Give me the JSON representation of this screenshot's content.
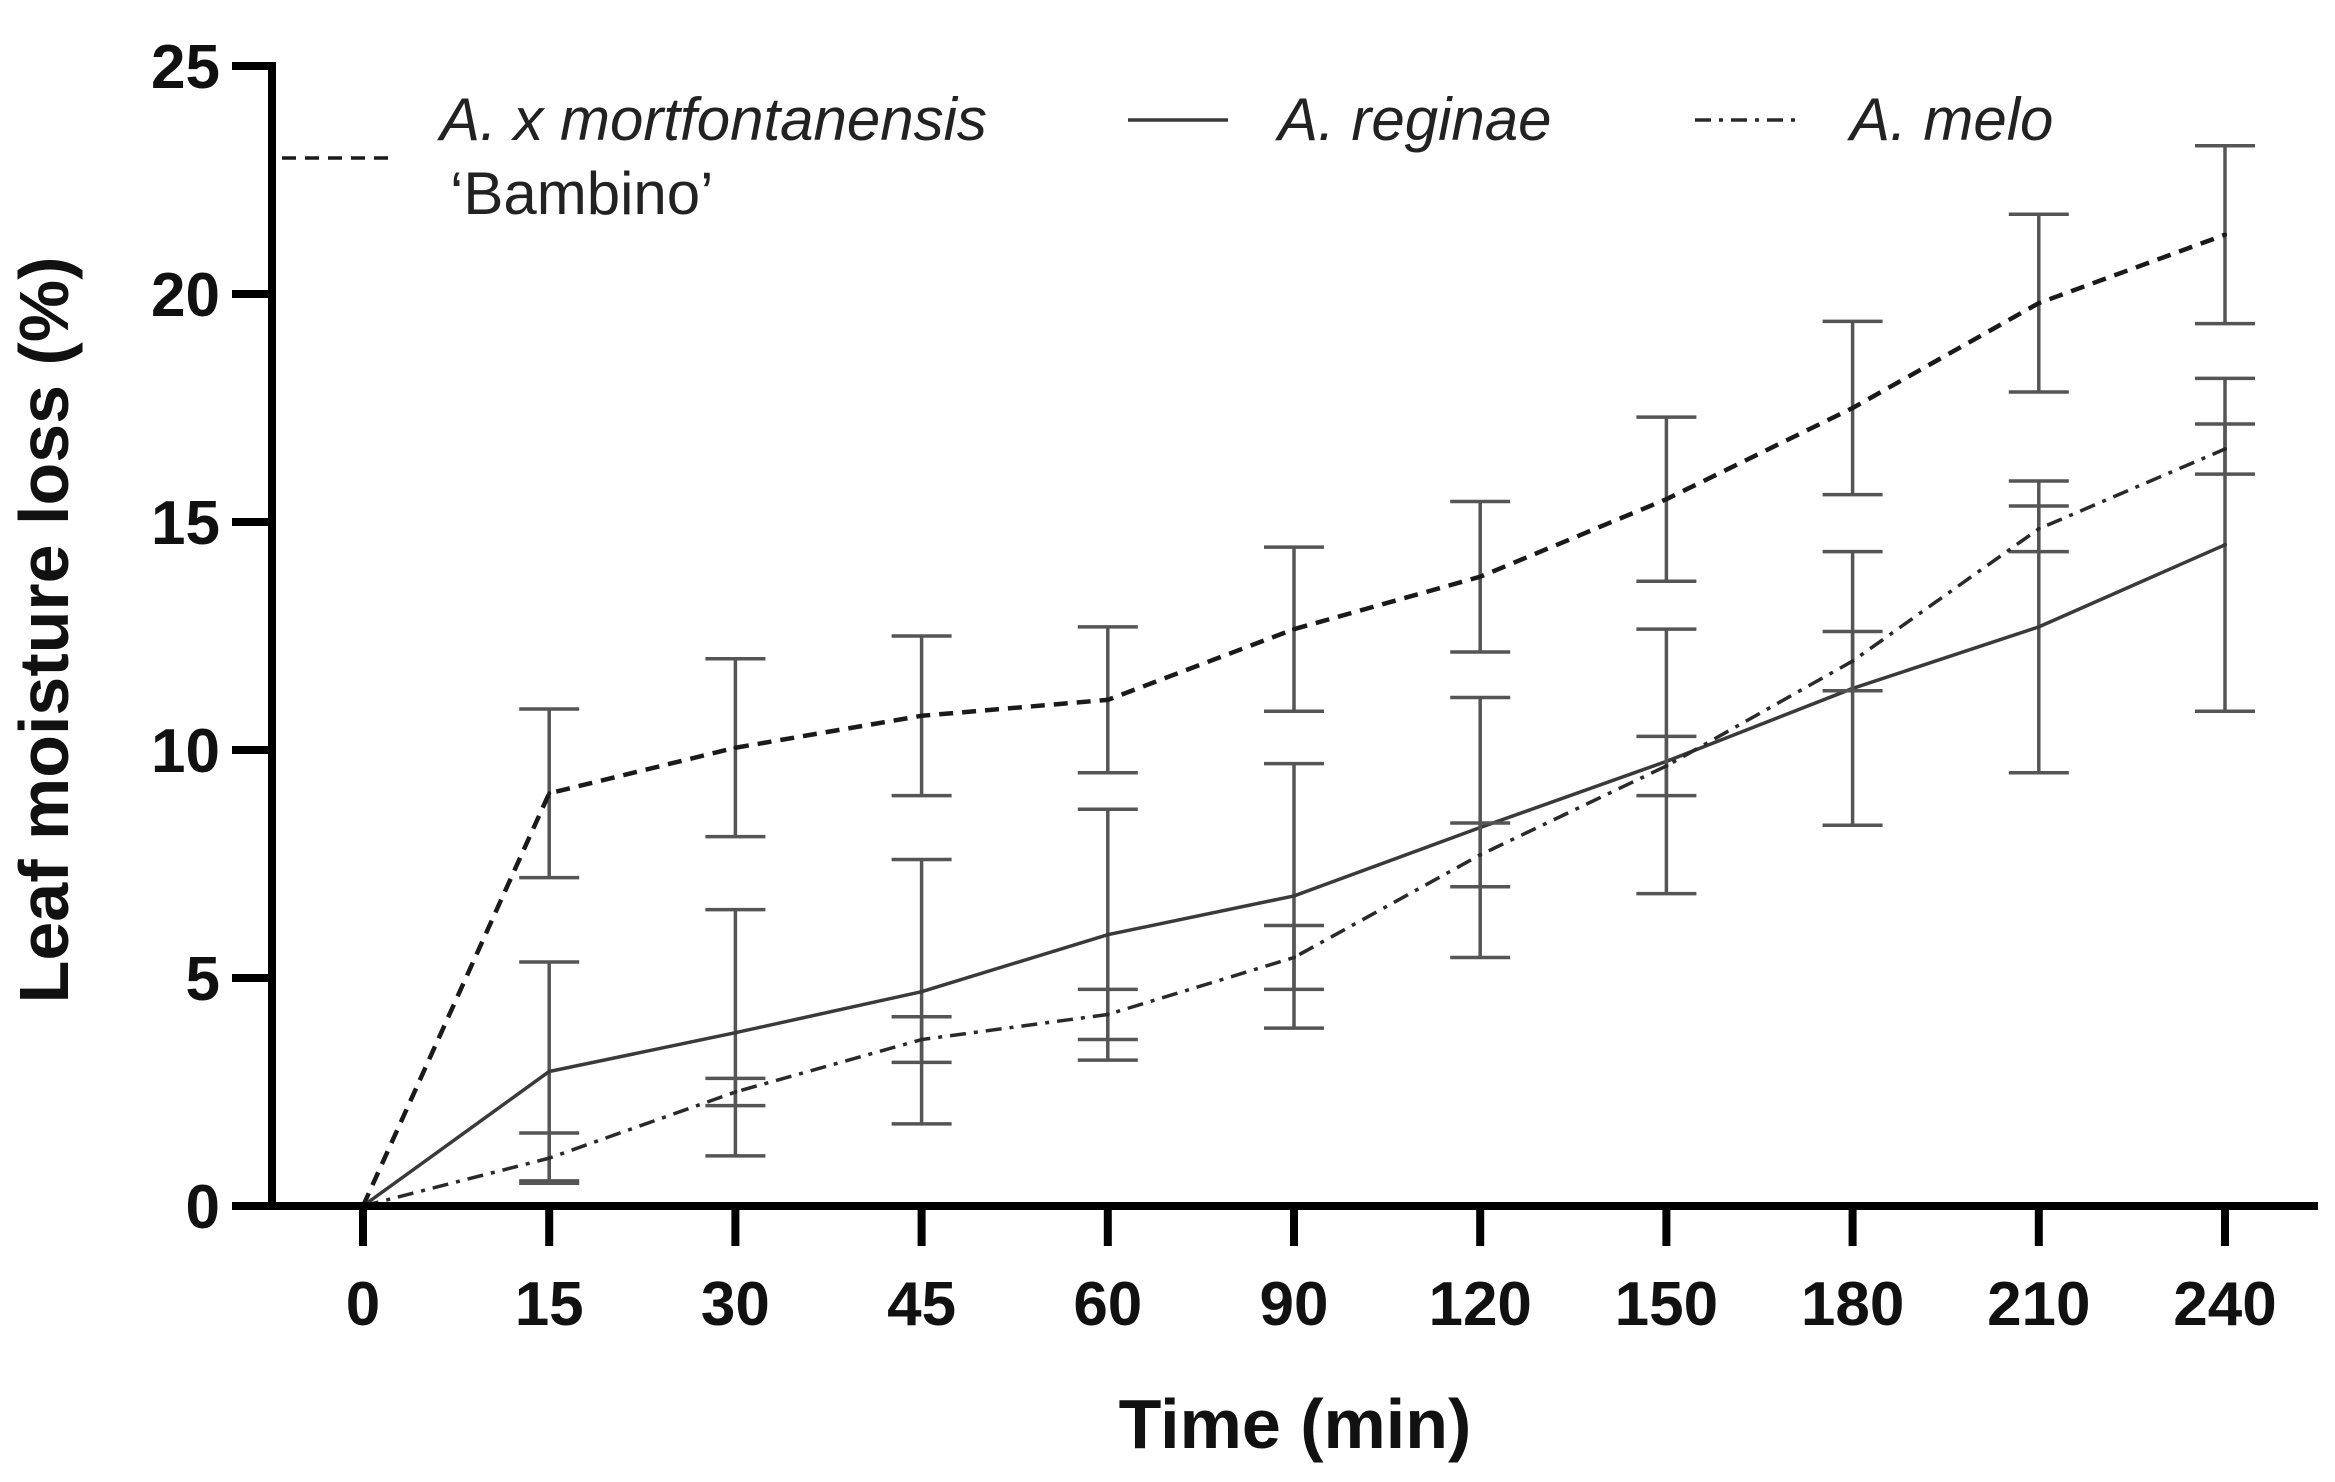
{
  "chart_data": {
    "type": "line",
    "title": "",
    "xlabel": "Time (min)",
    "ylabel": "Leaf moisture loss (%)",
    "categories": [
      "0",
      "15",
      "30",
      "45",
      "60",
      "90",
      "120",
      "150",
      "180",
      "210",
      "240"
    ],
    "ylim": [
      0,
      25
    ],
    "yticks": [
      "0",
      "5",
      "10",
      "15",
      "20",
      "25"
    ],
    "grid": false,
    "legend_position": "top",
    "series": [
      {
        "name": "A. x mortfontanensis",
        "subname": "‘Bambino’",
        "style": "dashed",
        "values": [
          0,
          9.05,
          10.05,
          10.75,
          11.1,
          12.65,
          13.8,
          15.5,
          17.5,
          19.8,
          21.3
        ],
        "errors": [
          0,
          1.85,
          1.95,
          1.75,
          1.6,
          1.8,
          1.65,
          1.8,
          1.9,
          1.95,
          1.95
        ]
      },
      {
        "name": "A. reginae",
        "subname": "",
        "style": "solid",
        "values": [
          0,
          2.95,
          3.8,
          4.7,
          5.95,
          6.8,
          8.3,
          9.75,
          11.35,
          12.7,
          14.5
        ],
        "errors": [
          0,
          2.4,
          2.7,
          2.9,
          2.75,
          2.9,
          2.85,
          2.9,
          3.0,
          3.2,
          3.65
        ]
      },
      {
        "name": "A. melo",
        "subname": "",
        "style": "dash-dot",
        "values": [
          0,
          1.05,
          2.5,
          3.65,
          4.2,
          5.45,
          7.7,
          9.65,
          11.95,
          14.85,
          16.6
        ],
        "errors": [
          0,
          0.55,
          0.3,
          0.5,
          0.55,
          0.7,
          0.7,
          0.65,
          0.65,
          0.5,
          0.55
        ]
      }
    ]
  }
}
